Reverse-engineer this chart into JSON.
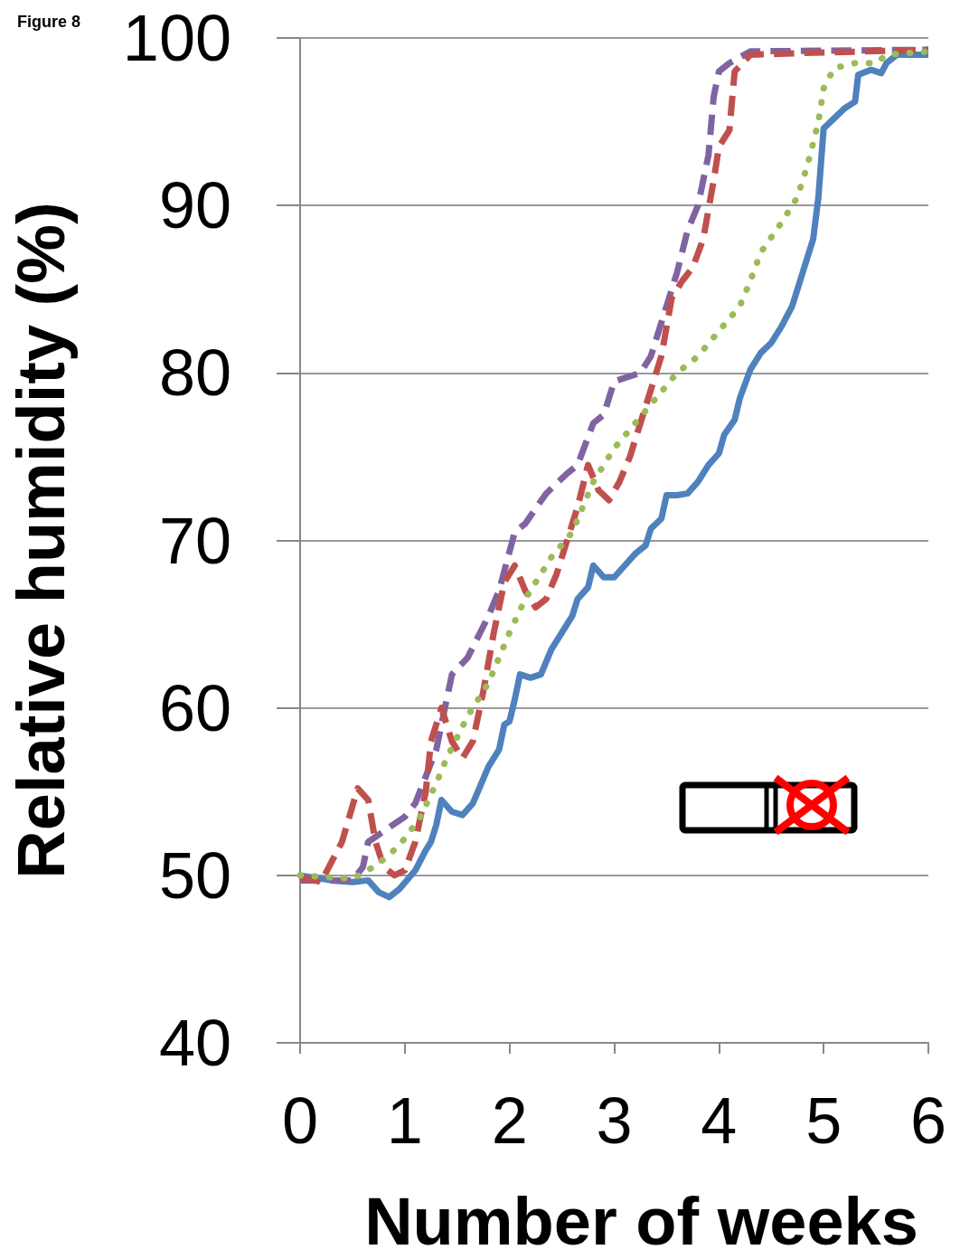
{
  "chart_data": {
    "type": "line",
    "title": "Figure 8",
    "xlabel": "Number of weeks",
    "ylabel": "Relative humidity (%)",
    "xlim": [
      0,
      6
    ],
    "xticks": [
      0,
      1,
      2,
      3,
      4,
      5,
      6
    ],
    "ylim": [
      40,
      100
    ],
    "yticks": [
      40,
      50,
      60,
      70,
      80,
      90,
      100
    ],
    "grid": "y",
    "marker": "none",
    "series": [
      {
        "color": "#4f81bd",
        "line_style": "solid",
        "x": [
          0,
          0.3,
          0.5,
          0.65,
          0.75,
          0.85,
          0.95,
          1.1,
          1.2,
          1.25,
          1.3,
          1.35,
          1.45,
          1.55,
          1.65,
          1.8,
          1.9,
          1.95,
          2.0,
          2.05,
          2.1,
          2.2,
          2.3,
          2.4,
          2.5,
          2.6,
          2.65,
          2.75,
          2.8,
          2.9,
          3.0,
          3.1,
          3.2,
          3.3,
          3.35,
          3.45,
          3.5,
          3.6,
          3.7,
          3.8,
          3.9,
          4.0,
          4.05,
          4.15,
          4.2,
          4.3,
          4.4,
          4.5,
          4.6,
          4.7,
          4.8,
          4.9,
          4.95,
          4.98,
          5.0,
          5.1,
          5.2,
          5.3,
          5.33,
          5.45,
          5.55,
          5.6,
          5.7,
          6
        ],
        "values": [
          50,
          49.7,
          49.6,
          49.7,
          49,
          48.7,
          49.2,
          50.3,
          51.5,
          52,
          53,
          54.5,
          53.8,
          53.6,
          54.3,
          56.5,
          57.5,
          59,
          59.2,
          60.5,
          62,
          61.8,
          62,
          63.5,
          64.5,
          65.5,
          66.5,
          67.2,
          68.5,
          67.8,
          67.8,
          68.5,
          69.2,
          69.7,
          70.7,
          71.3,
          72.7,
          72.7,
          72.8,
          73.5,
          74.5,
          75.2,
          76.3,
          77.2,
          78.5,
          80.2,
          81.2,
          81.8,
          82.8,
          84,
          86,
          88,
          90.5,
          93,
          94.6,
          95.2,
          95.8,
          96.2,
          97.8,
          98.1,
          97.9,
          98.5,
          99,
          99
        ]
      },
      {
        "color": "#8064a2",
        "line_style": "dashed",
        "x": [
          0,
          0.5,
          0.6,
          0.65,
          1.0,
          1.1,
          1.3,
          1.35,
          1.45,
          1.6,
          1.8,
          1.9,
          2.05,
          2.15,
          2.35,
          2.55,
          2.65,
          2.8,
          2.9,
          3.0,
          3.25,
          3.35,
          3.5,
          3.6,
          3.7,
          3.8,
          3.9,
          3.95,
          4.0,
          4.1,
          4.3,
          6
        ],
        "values": [
          49.7,
          49.7,
          50.5,
          52,
          53.5,
          54.3,
          57.5,
          59,
          62,
          63,
          65.5,
          67,
          70.5,
          71,
          72.8,
          74,
          74.5,
          77,
          77.5,
          79.5,
          80,
          81,
          84,
          86,
          88.5,
          90,
          93,
          96.5,
          98,
          98.5,
          99.2,
          99.3
        ]
      },
      {
        "color": "#c0504d",
        "line_style": "dashed",
        "x": [
          0,
          0.2,
          0.4,
          0.55,
          0.65,
          0.72,
          0.8,
          0.9,
          1.0,
          1.1,
          1.2,
          1.25,
          1.35,
          1.45,
          1.55,
          1.65,
          1.75,
          1.85,
          1.95,
          2.05,
          2.15,
          2.25,
          2.35,
          2.45,
          2.55,
          2.65,
          2.75,
          2.85,
          2.95,
          3.05,
          3.15,
          3.25,
          3.35,
          3.45,
          3.55,
          3.65,
          3.75,
          3.85,
          3.95,
          4.0,
          4.1,
          4.15,
          4.3,
          4.8,
          6
        ],
        "values": [
          49.9,
          49.6,
          52,
          55.2,
          54.5,
          52,
          50.5,
          50,
          50.3,
          52,
          55,
          58,
          60,
          58,
          57,
          58,
          61,
          64.5,
          67.5,
          68.5,
          67,
          66,
          66.5,
          68,
          70,
          72,
          74.5,
          73,
          72.4,
          73.5,
          75,
          77,
          79,
          81,
          84.5,
          85.5,
          86.3,
          88,
          91.5,
          93.5,
          94.5,
          98,
          99,
          99.1,
          99.3
        ]
      },
      {
        "color": "#9bbb59",
        "line_style": "dotted",
        "x": [
          0,
          0.5,
          0.7,
          0.85,
          1.0,
          1.15,
          1.3,
          1.4,
          1.6,
          1.8,
          2.0,
          2.15,
          2.4,
          2.6,
          2.8,
          3.0,
          3.2,
          3.4,
          3.6,
          3.8,
          4.0,
          4.2,
          4.3,
          4.4,
          4.6,
          4.75,
          4.85,
          4.95,
          5.0,
          5.1,
          5.3,
          5.5,
          5.6,
          6
        ],
        "values": [
          50,
          49.8,
          50.5,
          51.2,
          52.2,
          53.5,
          55.5,
          57,
          59.5,
          61.5,
          64.5,
          66.5,
          69,
          70.5,
          73.5,
          75.5,
          77,
          78.5,
          80,
          81,
          82.5,
          84,
          85.5,
          87.2,
          89,
          90.5,
          92.5,
          95,
          97,
          98.2,
          98.5,
          98.5,
          99,
          99.2
        ]
      }
    ]
  }
}
